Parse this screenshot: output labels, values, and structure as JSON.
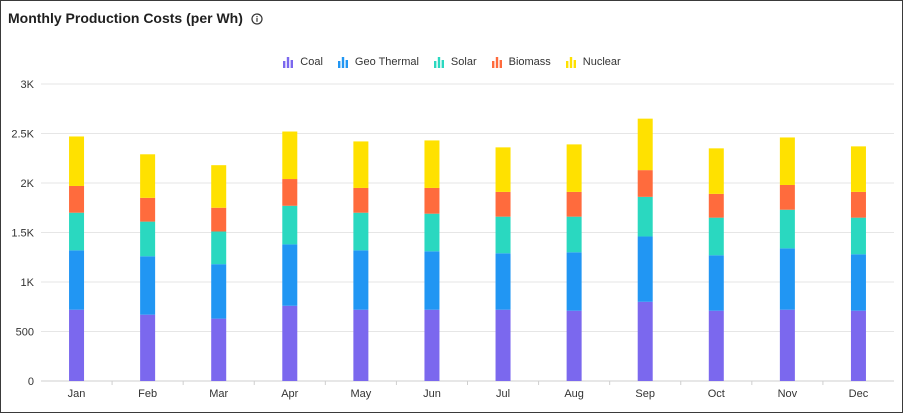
{
  "header": {
    "title": "Monthly Production Costs (per Wh)",
    "info_icon": "info-icon"
  },
  "colors": {
    "Coal": "#7b68ee",
    "Geo Thermal": "#2196f3",
    "Solar": "#2ad8c0",
    "Biomass": "#ff6b3d",
    "Nuclear": "#ffe100",
    "grid": "#e6e6e6",
    "axis": "#333333"
  },
  "chart_data": {
    "type": "bar",
    "stacked": true,
    "title": "Monthly Production Costs (per Wh)",
    "xlabel": "",
    "ylabel": "",
    "ylim": [
      0,
      3000
    ],
    "y_ticks": [
      0,
      500,
      1000,
      1500,
      2000,
      2500,
      3000
    ],
    "y_tick_labels": [
      "0",
      "500",
      "1K",
      "1.5K",
      "2K",
      "2.5K",
      "3K"
    ],
    "grid": true,
    "legend_position": "top-center",
    "categories": [
      "Jan",
      "Feb",
      "Mar",
      "Apr",
      "May",
      "Jun",
      "Jul",
      "Aug",
      "Sep",
      "Oct",
      "Nov",
      "Dec"
    ],
    "series": [
      {
        "name": "Coal",
        "values": [
          720,
          670,
          630,
          760,
          720,
          720,
          720,
          710,
          800,
          710,
          720,
          710
        ]
      },
      {
        "name": "Geo Thermal",
        "values": [
          600,
          590,
          550,
          620,
          600,
          590,
          570,
          590,
          660,
          560,
          620,
          570
        ]
      },
      {
        "name": "Solar",
        "values": [
          380,
          350,
          330,
          390,
          380,
          380,
          370,
          360,
          400,
          380,
          390,
          370
        ]
      },
      {
        "name": "Biomass",
        "values": [
          270,
          240,
          240,
          270,
          250,
          260,
          250,
          250,
          270,
          240,
          250,
          260
        ]
      },
      {
        "name": "Nuclear",
        "values": [
          500,
          440,
          430,
          480,
          470,
          480,
          450,
          480,
          520,
          460,
          480,
          460
        ]
      }
    ]
  }
}
